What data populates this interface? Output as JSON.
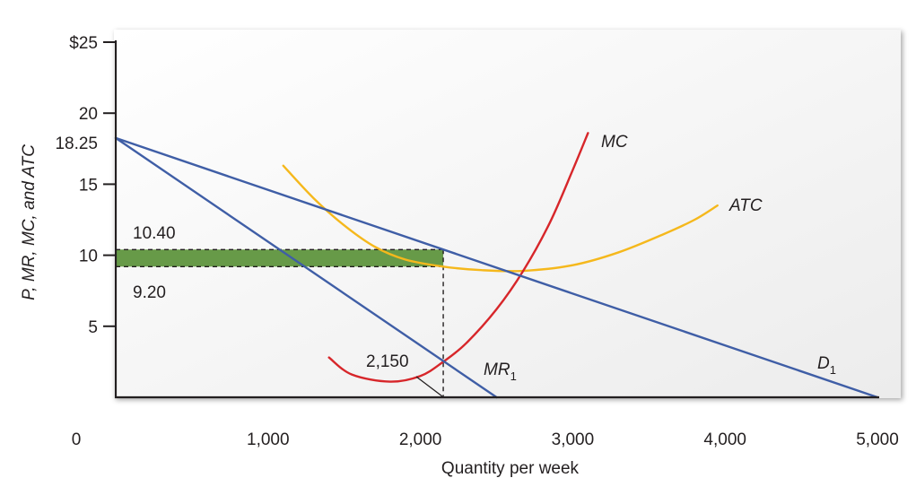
{
  "chart_data": {
    "type": "line",
    "title": "",
    "xlabel": "Quantity per week",
    "ylabel": "P, MR, MC, and ATC",
    "xlim": [
      0,
      5000
    ],
    "ylim": [
      0,
      25
    ],
    "origin_label": "0",
    "x_ticks": [
      {
        "value": 1000,
        "label": "1,000"
      },
      {
        "value": 2000,
        "label": "2,000"
      },
      {
        "value": 3000,
        "label": "3,000"
      },
      {
        "value": 4000,
        "label": "4,000"
      },
      {
        "value": 5000,
        "label": "5,000"
      }
    ],
    "y_ticks": [
      {
        "value": 5,
        "label": "5"
      },
      {
        "value": 10,
        "label": "10"
      },
      {
        "value": 15,
        "label": "15"
      },
      {
        "value": 20,
        "label": "20"
      },
      {
        "value": 25,
        "label": "$25"
      }
    ],
    "y_intercept_label": {
      "value": 18.25,
      "label": "18.25"
    },
    "series": [
      {
        "name": "D",
        "subscript": "1",
        "color": "#3f5ea6",
        "points": [
          [
            0,
            18.25
          ],
          [
            5000,
            0
          ]
        ]
      },
      {
        "name": "MR",
        "subscript": "1",
        "color": "#3f5ea6",
        "points": [
          [
            0,
            18.25
          ],
          [
            2500,
            0
          ]
        ]
      },
      {
        "name": "MC",
        "subscript": "",
        "color": "#d7262a",
        "points": [
          [
            1400,
            2.8
          ],
          [
            1550,
            1.6
          ],
          [
            1800,
            1.1
          ],
          [
            2000,
            1.5
          ],
          [
            2150,
            2.5
          ],
          [
            2300,
            3.8
          ],
          [
            2500,
            6.2
          ],
          [
            2675,
            8.9
          ],
          [
            2850,
            12.3
          ],
          [
            3000,
            16.0
          ],
          [
            3100,
            18.6
          ]
        ]
      },
      {
        "name": "ATC",
        "subscript": "",
        "color": "#f5b81c",
        "points": [
          [
            1100,
            16.3
          ],
          [
            1300,
            14.0
          ],
          [
            1500,
            12.1
          ],
          [
            1700,
            10.6
          ],
          [
            1900,
            9.7
          ],
          [
            2150,
            9.2
          ],
          [
            2400,
            8.95
          ],
          [
            2675,
            8.9
          ],
          [
            3000,
            9.3
          ],
          [
            3300,
            10.2
          ],
          [
            3600,
            11.5
          ],
          [
            3800,
            12.5
          ],
          [
            3950,
            13.5
          ]
        ]
      }
    ],
    "profit_rect": {
      "x": [
        0,
        2150
      ],
      "y": [
        9.2,
        10.4
      ],
      "color": "#679a48"
    },
    "annotations": {
      "price_label": {
        "text": "10.40",
        "value": 10.4
      },
      "atc_label": {
        "text": "9.20",
        "value": 9.2
      },
      "quantity_label": {
        "text": "2,150",
        "value": 2150,
        "y": 2.5
      }
    },
    "colors": {
      "demand_mr": "#3f5ea6",
      "mc": "#d7262a",
      "atc": "#f5b81c",
      "profit": "#679a48",
      "axis": "#231f20"
    }
  }
}
